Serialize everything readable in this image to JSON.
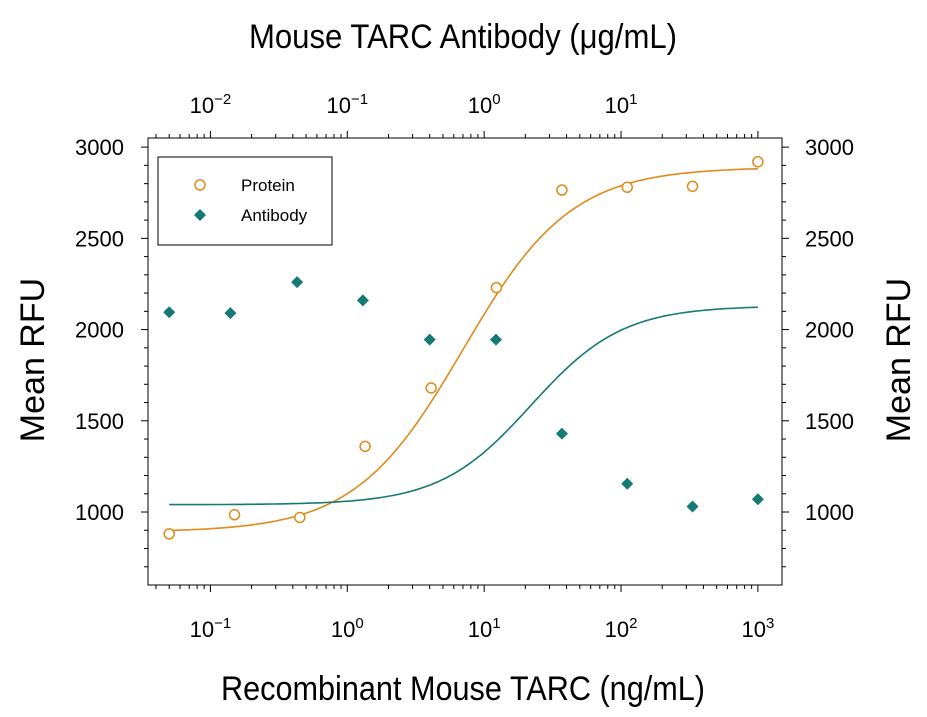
{
  "chart_data": {
    "type": "scatter",
    "top_axis_title": "Mouse TARC Antibody (μg/mL)",
    "xlabel": "Recombinant Mouse TARC (ng/mL)",
    "ylabel_left": "Mean RFU",
    "ylabel_right": "Mean RFU",
    "x_scale": "log",
    "xlim": [
      0.035,
      1500
    ],
    "ylim": [
      600,
      3050
    ],
    "bottom_ticks": [
      {
        "base": "10",
        "exp": "−1",
        "value": 0.1
      },
      {
        "base": "10",
        "exp": "0",
        "value": 1
      },
      {
        "base": "10",
        "exp": "1",
        "value": 10
      },
      {
        "base": "10",
        "exp": "2",
        "value": 100
      },
      {
        "base": "10",
        "exp": "3",
        "value": 1000
      }
    ],
    "top_ticks": [
      {
        "base": "10",
        "exp": "−2",
        "value": 0.01
      },
      {
        "base": "10",
        "exp": "−1",
        "value": 0.1
      },
      {
        "base": "10",
        "exp": "0",
        "value": 1
      },
      {
        "base": "10",
        "exp": "1",
        "value": 10
      }
    ],
    "top_xlim": [
      0.0035,
      150
    ],
    "left_ticks": [
      1000,
      1500,
      2000,
      2500,
      3000
    ],
    "right_ticks": [
      1000,
      1500,
      2000,
      2500,
      3000
    ],
    "legend_position": "top-left",
    "grid": false,
    "series": [
      {
        "name": "Protein",
        "color": "#e08a1a",
        "marker": "open-circle",
        "x": [
          0.05,
          0.15,
          0.45,
          1.35,
          4.1,
          12.3,
          37,
          111,
          333,
          1000
        ],
        "y": [
          880,
          985,
          970,
          1360,
          1680,
          2230,
          2765,
          2780,
          2785,
          2920
        ],
        "fit": {
          "bottom": 890,
          "top": 2890,
          "ec50": 7.0,
          "hill": 1.1
        }
      },
      {
        "name": "Antibody",
        "color": "#137a74",
        "marker": "filled-diamond",
        "x": [
          0.05,
          0.14,
          0.43,
          1.3,
          4.0,
          12.2,
          37,
          111,
          333,
          1000
        ],
        "y": [
          2095,
          2090,
          2260,
          2160,
          1945,
          1945,
          1430,
          1155,
          1030,
          1070
        ],
        "fit": {
          "bottom": 1040,
          "top": 2130,
          "ec50": 22,
          "hill": 1.3
        }
      }
    ]
  }
}
